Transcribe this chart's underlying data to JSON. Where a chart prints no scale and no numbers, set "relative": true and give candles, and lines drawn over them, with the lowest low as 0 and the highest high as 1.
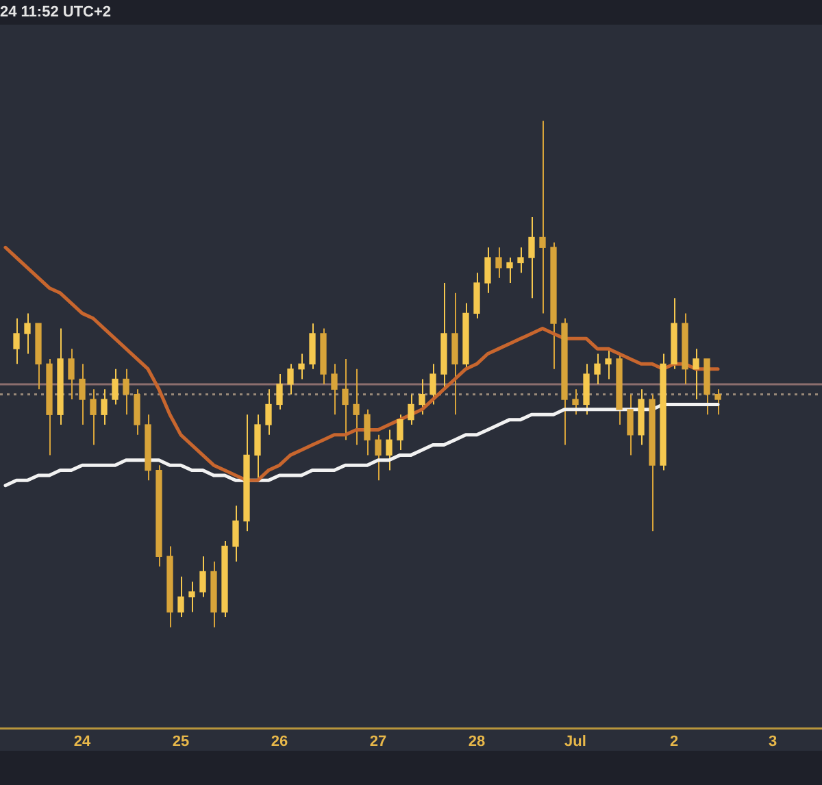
{
  "chart_data": {
    "type": "candlestick",
    "relative": true,
    "annotations": [
      "24 11:52 UTC+2"
    ],
    "categories": [
      null,
      null,
      null,
      null,
      null,
      null,
      null,
      "24",
      null,
      null,
      null,
      null,
      null,
      null,
      null,
      null,
      "25",
      null,
      null,
      null,
      null,
      null,
      null,
      null,
      null,
      "26",
      null,
      null,
      null,
      null,
      null,
      null,
      null,
      null,
      "27",
      null,
      null,
      null,
      null,
      null,
      null,
      null,
      null,
      "28",
      null,
      null,
      null,
      null,
      null,
      null,
      null,
      null,
      "Jul",
      null,
      null,
      null,
      null,
      null,
      null,
      null,
      null,
      "2",
      null,
      null,
      null,
      null,
      null,
      null,
      null,
      null,
      "3",
      null,
      null,
      null,
      null
    ],
    "ohlc": [
      null,
      [
        0.55,
        0.61,
        0.52,
        0.58
      ],
      [
        0.58,
        0.62,
        0.54,
        0.6
      ],
      [
        0.6,
        0.6,
        0.47,
        0.52
      ],
      [
        0.52,
        0.53,
        0.34,
        0.42
      ],
      [
        0.42,
        0.59,
        0.4,
        0.53
      ],
      [
        0.53,
        0.55,
        0.45,
        0.49
      ],
      [
        0.49,
        0.52,
        0.4,
        0.45
      ],
      [
        0.45,
        0.47,
        0.36,
        0.42
      ],
      [
        0.42,
        0.47,
        0.4,
        0.45
      ],
      [
        0.45,
        0.51,
        0.44,
        0.49
      ],
      [
        0.49,
        0.51,
        0.42,
        0.46
      ],
      [
        0.46,
        0.47,
        0.38,
        0.4
      ],
      [
        0.4,
        0.42,
        0.29,
        0.31
      ],
      [
        0.31,
        0.32,
        0.12,
        0.14
      ],
      [
        0.14,
        0.16,
        0,
        0.03
      ],
      [
        0.03,
        0.1,
        0.02,
        0.06
      ],
      [
        0.06,
        0.09,
        0.03,
        0.07
      ],
      [
        0.07,
        0.14,
        0.06,
        0.11
      ],
      [
        0.11,
        0.13,
        0,
        0.03
      ],
      [
        0.03,
        0.17,
        0.02,
        0.16
      ],
      [
        0.16,
        0.24,
        0.13,
        0.21
      ],
      [
        0.21,
        0.42,
        0.19,
        0.34
      ],
      [
        0.34,
        0.42,
        0.29,
        0.4
      ],
      [
        0.4,
        0.47,
        0.38,
        0.44
      ],
      [
        0.44,
        0.5,
        0.43,
        0.48
      ],
      [
        0.48,
        0.52,
        0.46,
        0.51
      ],
      [
        0.51,
        0.54,
        0.49,
        0.52
      ],
      [
        0.52,
        0.6,
        0.51,
        0.58
      ],
      [
        0.58,
        0.59,
        0.48,
        0.5
      ],
      [
        0.5,
        0.52,
        0.42,
        0.47
      ],
      [
        0.47,
        0.53,
        0.37,
        0.44
      ],
      [
        0.44,
        0.51,
        0.36,
        0.42
      ],
      [
        0.42,
        0.43,
        0.34,
        0.37
      ],
      [
        0.37,
        0.38,
        0.29,
        0.34
      ],
      [
        0.34,
        0.39,
        0.31,
        0.37
      ],
      [
        0.37,
        0.42,
        0.35,
        0.41
      ],
      [
        0.41,
        0.46,
        0.4,
        0.44
      ],
      [
        0.44,
        0.49,
        0.42,
        0.46
      ],
      [
        0.46,
        0.52,
        0.44,
        0.5
      ],
      [
        0.5,
        0.68,
        0.47,
        0.58
      ],
      [
        0.58,
        0.66,
        0.42,
        0.52
      ],
      [
        0.52,
        0.64,
        0.51,
        0.62
      ],
      [
        0.62,
        0.7,
        0.61,
        0.68
      ],
      [
        0.68,
        0.75,
        0.66,
        0.73
      ],
      [
        0.73,
        0.75,
        0.69,
        0.71
      ],
      [
        0.71,
        0.73,
        0.68,
        0.72
      ],
      [
        0.72,
        0.75,
        0.7,
        0.73
      ],
      [
        0.73,
        0.81,
        0.65,
        0.77
      ],
      [
        0.77,
        1.0,
        0.62,
        0.75
      ],
      [
        0.75,
        0.76,
        0.51,
        0.6
      ],
      [
        0.6,
        0.61,
        0.36,
        0.45
      ],
      [
        0.45,
        0.47,
        0.42,
        0.44
      ],
      [
        0.44,
        0.52,
        0.42,
        0.5
      ],
      [
        0.5,
        0.54,
        0.48,
        0.52
      ],
      [
        0.52,
        0.55,
        0.49,
        0.53
      ],
      [
        0.53,
        0.54,
        0.4,
        0.43
      ],
      [
        0.43,
        0.46,
        0.34,
        0.38
      ],
      [
        0.38,
        0.47,
        0.36,
        0.45
      ],
      [
        0.45,
        0.46,
        0.19,
        0.32
      ],
      [
        0.32,
        0.54,
        0.31,
        0.52
      ],
      [
        0.52,
        0.65,
        0.51,
        0.6
      ],
      [
        0.6,
        0.62,
        0.48,
        0.51
      ],
      [
        0.51,
        0.55,
        0.45,
        0.53
      ],
      [
        0.53,
        0.53,
        0.42,
        0.46
      ],
      [
        0.46,
        0.47,
        0.42,
        0.45
      ],
      null,
      null,
      null,
      null,
      null,
      null,
      null,
      null,
      null
    ],
    "colors": [
      null,
      "#f5c84f",
      "#f5c84f",
      "#d8a43a",
      "#d8a43a",
      "#f5c84f",
      "#d8a43a",
      "#d8a43a",
      "#d8a43a",
      "#f5c84f",
      "#f5c84f",
      "#d8a43a",
      "#d8a43a",
      "#d8a43a",
      "#d8a43a",
      "#d8a43a",
      "#f5c84f",
      "#f5c84f",
      "#f5c84f",
      "#d8a43a",
      "#f5c84f",
      "#f5c84f",
      "#f5c84f",
      "#f5c84f",
      "#f5c84f",
      "#f5c84f",
      "#f5c84f",
      "#f5c84f",
      "#f5c84f",
      "#d8a43a",
      "#d8a43a",
      "#d8a43a",
      "#d8a43a",
      "#d8a43a",
      "#d8a43a",
      "#f5c84f",
      "#f5c84f",
      "#f5c84f",
      "#f5c84f",
      "#f5c84f",
      "#f5c84f",
      "#d8a43a",
      "#f5c84f",
      "#f5c84f",
      "#f5c84f",
      "#d8a43a",
      "#f5c84f",
      "#f5c84f",
      "#f5c84f",
      "#d8a43a",
      "#d8a43a",
      "#d8a43a",
      "#d8a43a",
      "#f5c84f",
      "#f5c84f",
      "#f5c84f",
      "#d8a43a",
      "#d8a43a",
      "#f5c84f",
      "#d8a43a",
      "#f5c84f",
      "#f5c84f",
      "#d8a43a",
      "#f5c84f",
      "#d8a43a",
      "#d8a43a",
      null,
      null,
      null,
      null,
      null,
      null,
      null,
      null,
      null
    ],
    "series": [
      {
        "type": "line",
        "color": "#c8662e",
        "values": [
          0.75,
          0.73,
          0.71,
          0.69,
          0.67,
          0.66,
          0.64,
          0.62,
          0.61,
          0.59,
          0.57,
          0.55,
          0.53,
          0.51,
          0.47,
          0.42,
          0.38,
          0.36,
          0.34,
          0.32,
          0.31,
          0.3,
          0.29,
          0.29,
          0.31,
          0.32,
          0.34,
          0.35,
          0.36,
          0.37,
          0.38,
          0.38,
          0.39,
          0.39,
          0.39,
          0.4,
          0.41,
          0.42,
          0.43,
          0.45,
          0.47,
          0.49,
          0.51,
          0.52,
          0.54,
          0.55,
          0.56,
          0.57,
          0.58,
          0.59,
          0.58,
          0.57,
          0.57,
          0.57,
          0.55,
          0.55,
          0.54,
          0.53,
          0.52,
          0.52,
          0.51,
          0.52,
          0.52,
          0.51,
          0.51,
          0.51,
          null,
          null,
          null,
          null,
          null,
          null,
          null,
          null,
          null
        ]
      },
      {
        "type": "line",
        "color": "#f2f2f2",
        "values": [
          0.28,
          0.29,
          0.29,
          0.3,
          0.3,
          0.31,
          0.31,
          0.32,
          0.32,
          0.32,
          0.32,
          0.33,
          0.33,
          0.33,
          0.33,
          0.32,
          0.32,
          0.31,
          0.31,
          0.3,
          0.3,
          0.29,
          0.29,
          0.29,
          0.29,
          0.3,
          0.3,
          0.3,
          0.31,
          0.31,
          0.31,
          0.32,
          0.32,
          0.32,
          0.33,
          0.33,
          0.34,
          0.34,
          0.35,
          0.36,
          0.36,
          0.37,
          0.38,
          0.38,
          0.39,
          0.4,
          0.41,
          0.41,
          0.42,
          0.42,
          0.42,
          0.43,
          0.43,
          0.43,
          0.43,
          0.43,
          0.43,
          0.43,
          0.43,
          0.43,
          0.44,
          0.44,
          0.44,
          0.44,
          0.44,
          0.44,
          null,
          null,
          null,
          null,
          null,
          null,
          null,
          null,
          null
        ]
      }
    ],
    "ref_lines": [
      {
        "axis": "y",
        "value": 0.48,
        "color": "#8c6e6e",
        "line_style": "solid"
      },
      {
        "axis": "y",
        "value": 0.46,
        "color": "#9a8a7a",
        "line_style": "dotted"
      }
    ],
    "grid": false,
    "legend": false
  }
}
